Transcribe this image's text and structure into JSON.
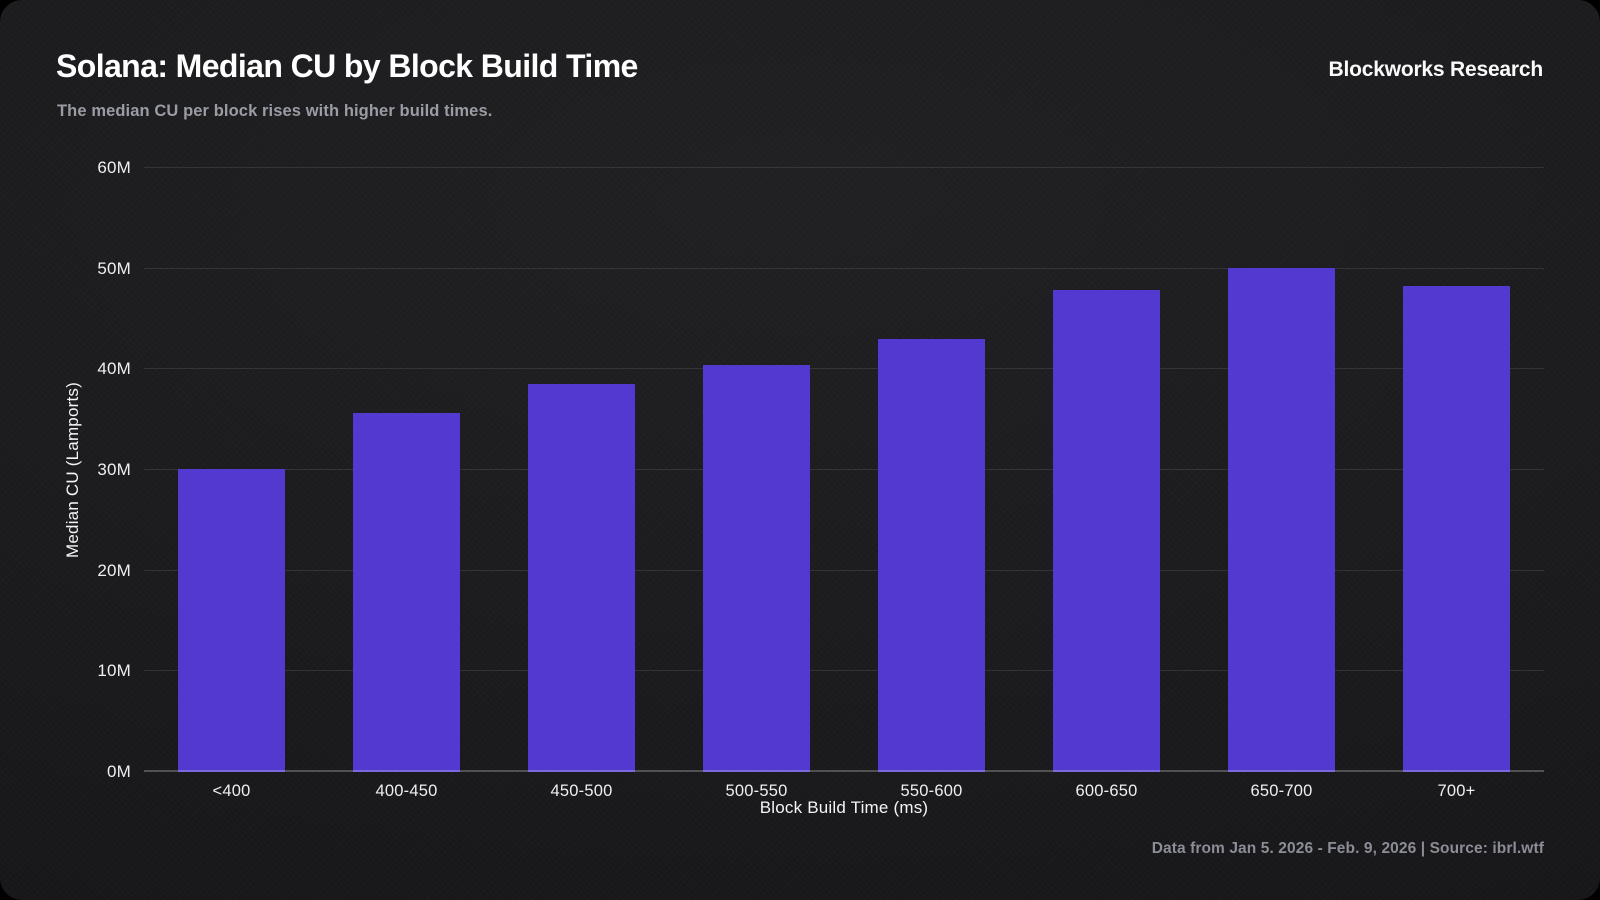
{
  "header": {
    "title": "Solana: Median CU by Block Build Time",
    "subtitle": "The median CU per block rises with higher build times.",
    "brand": "Blockworks Research"
  },
  "chart_data": {
    "type": "bar",
    "title": "Solana: Median CU by Block Build Time",
    "categories": [
      "<400",
      "400-450",
      "450-500",
      "500-550",
      "550-600",
      "600-650",
      "650-700",
      "700+"
    ],
    "values": [
      30.1,
      35.7,
      38.5,
      40.4,
      43.0,
      47.9,
      50.1,
      48.3
    ],
    "value_unit": "M",
    "xlabel": "Block Build Time (ms)",
    "ylabel": "Median CU (Lamports)",
    "ylim": [
      0,
      60
    ],
    "yticks": [
      0,
      10,
      20,
      30,
      40,
      50,
      60
    ],
    "ytick_labels": [
      "0M",
      "10M",
      "20M",
      "30M",
      "40M",
      "50M",
      "60M"
    ],
    "grid": "horizontal",
    "legend": "none",
    "bar_color": "#5439d1"
  },
  "footer": {
    "note": "Data from Jan 5. 2026 - Feb. 9, 2026 | Source: ibrl.wtf"
  },
  "colors": {
    "card_background": "#1b1b1d",
    "outer_background": "#000000",
    "title_text": "#ffffff",
    "subtitle_text": "#9a9ca4",
    "axis_text": "#efeff1",
    "footer_text": "#8b8d96",
    "gridline": "rgba(255,255,255,0.10)",
    "bar": "#5439d1"
  }
}
